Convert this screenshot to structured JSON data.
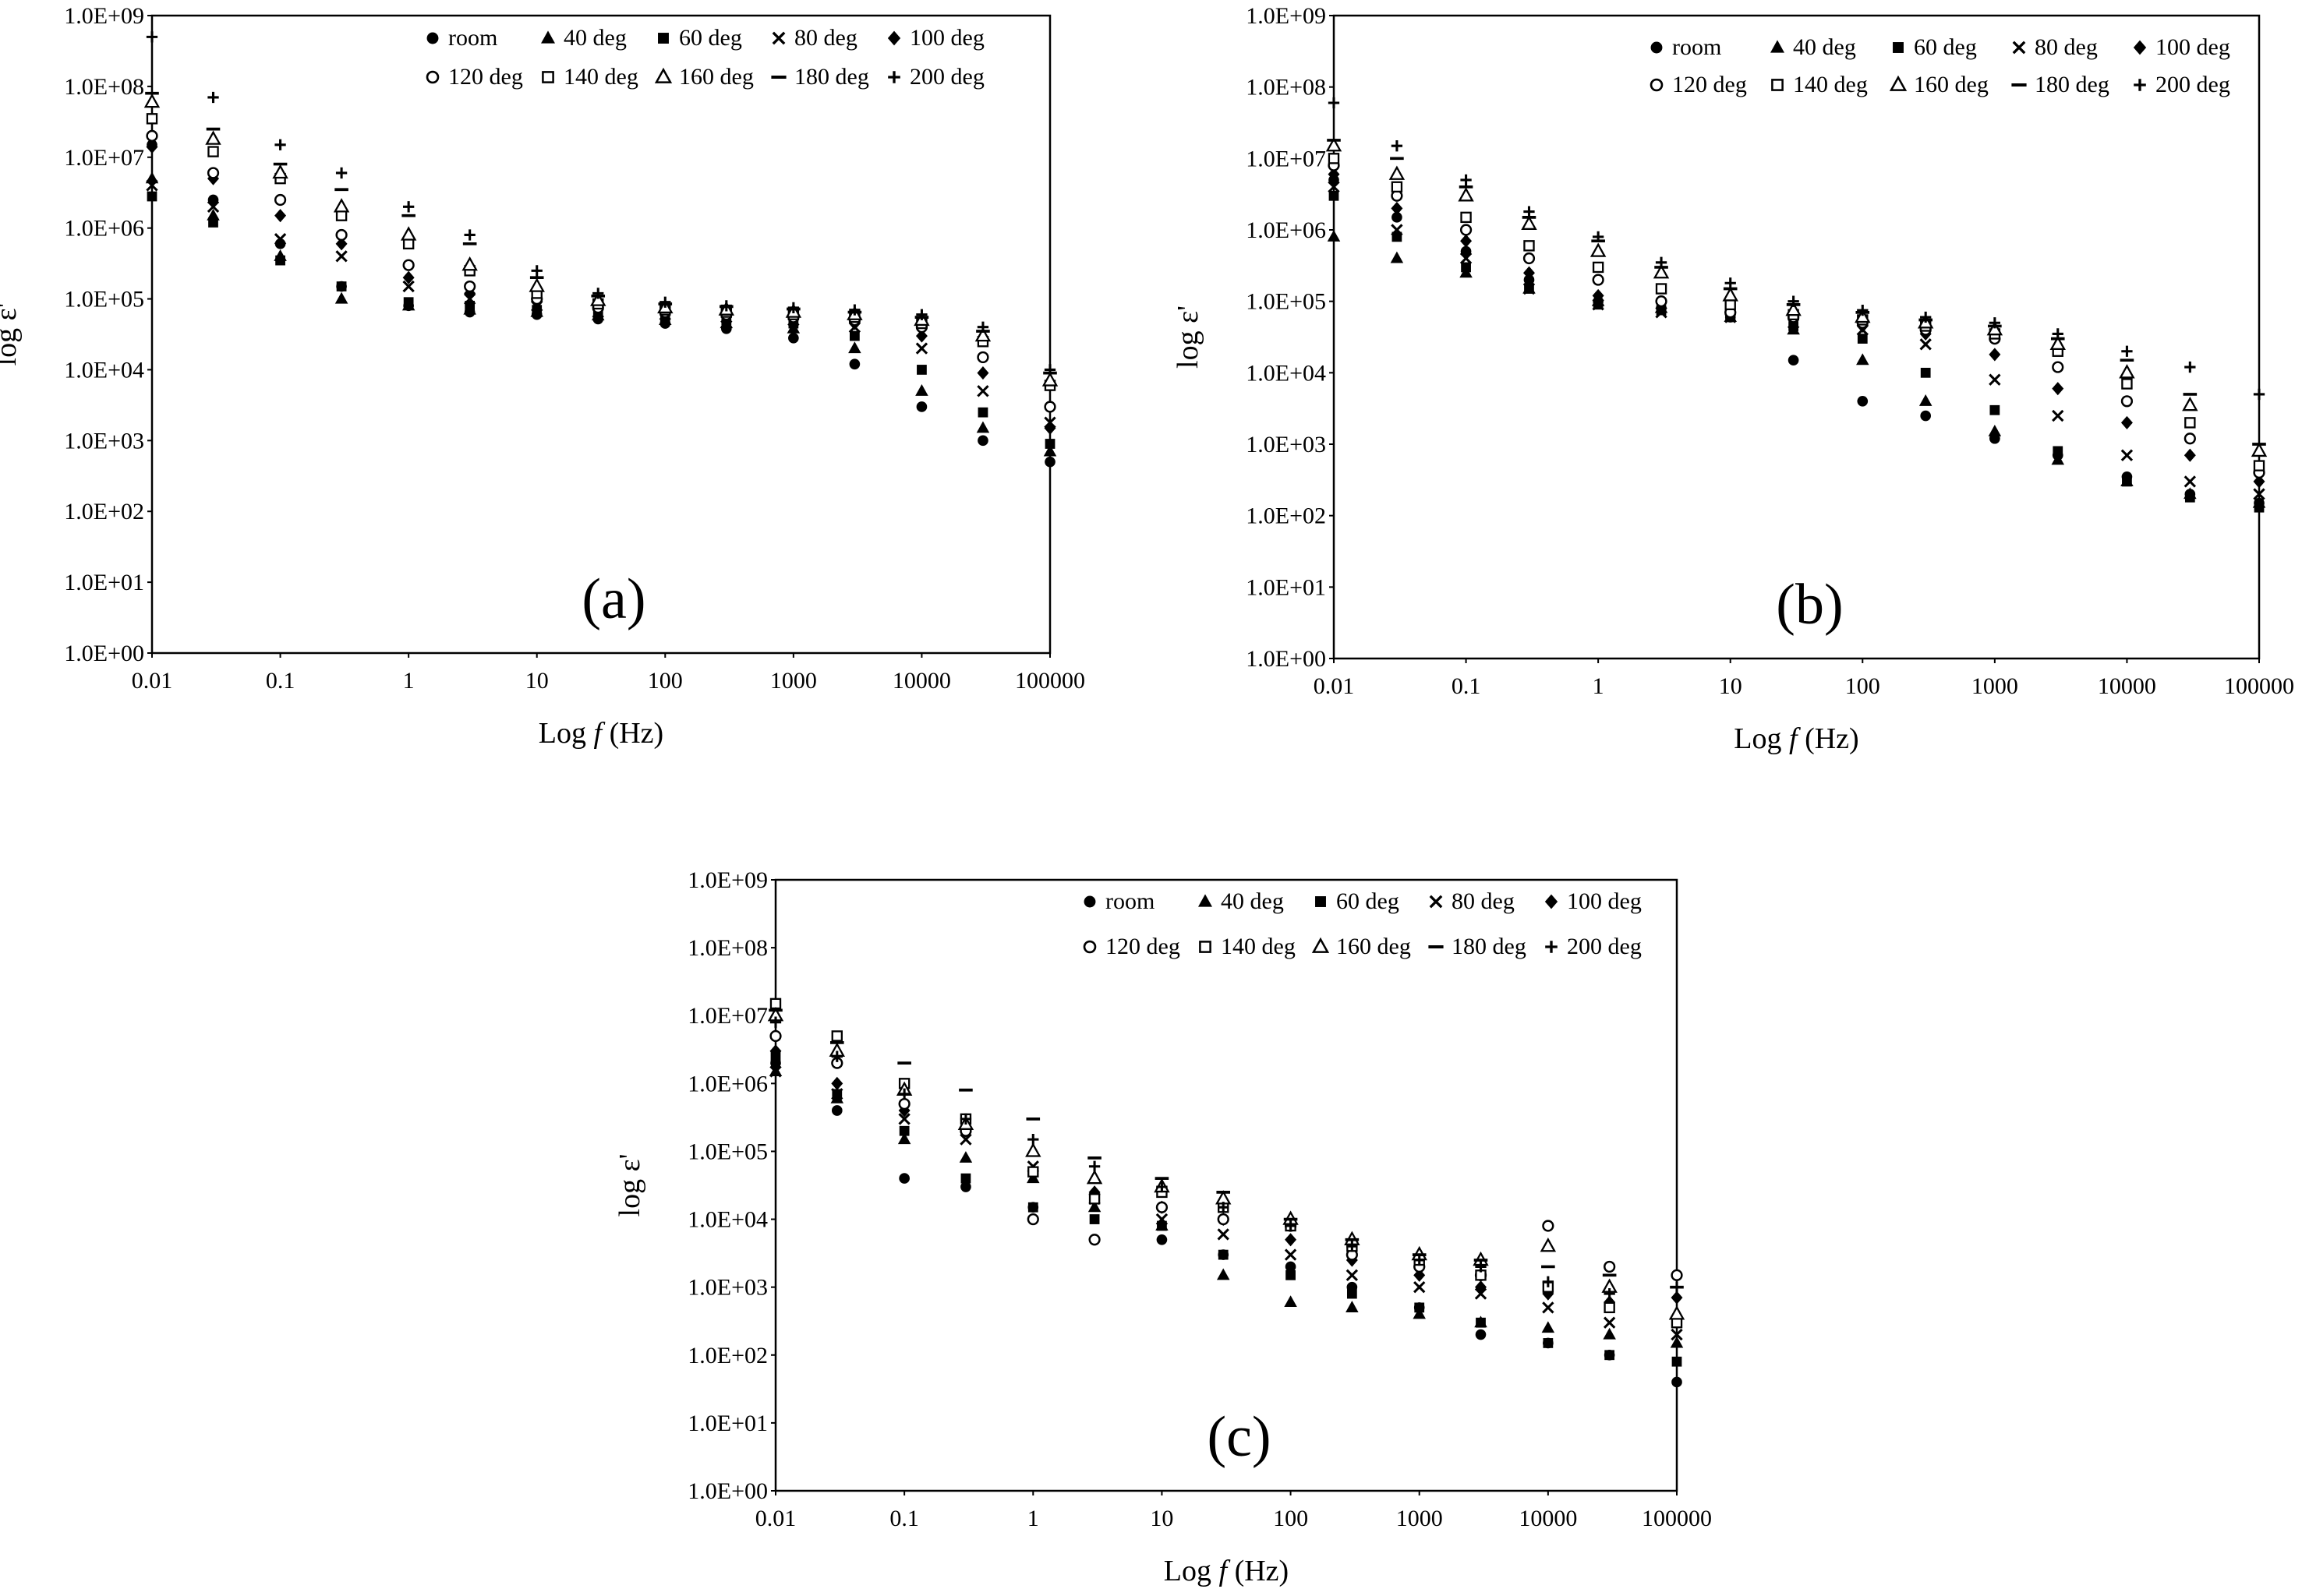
{
  "figure": {
    "panels": [
      {
        "label": "(a)",
        "xlabel_prefix": "Log ",
        "xlabel_var": "f",
        "xlabel_suffix": " (Hz)",
        "ylabel": "log ε'"
      },
      {
        "label": "(b)",
        "xlabel_prefix": "Log ",
        "xlabel_var": "f",
        "xlabel_suffix": " (Hz)",
        "ylabel": "log ε'"
      },
      {
        "label": "(c)",
        "xlabel_prefix": "Log ",
        "xlabel_var": "f",
        "xlabel_suffix": " (Hz)",
        "ylabel": "log ε'"
      }
    ]
  },
  "chart_data": [
    {
      "type": "scatter",
      "panel_label": "(a)",
      "xlabel": "Log f (Hz)",
      "ylabel": "log ε'",
      "x_scale": "log",
      "y_scale": "log",
      "xlim": [
        0.01,
        100000
      ],
      "ylim": [
        1,
        1000000000
      ],
      "x_ticks": [
        "0.01",
        "0.1",
        "1",
        "10",
        "100",
        "1000",
        "10000",
        "100000"
      ],
      "y_ticks": [
        "1.0E+00",
        "1.0E+01",
        "1.0E+02",
        "1.0E+03",
        "1.0E+04",
        "1.0E+05",
        "1.0E+06",
        "1.0E+07",
        "1.0E+08",
        "1.0E+09"
      ],
      "legend_position": "top-right",
      "grid": false,
      "x": [
        0.01,
        0.03,
        0.1,
        0.3,
        1,
        3,
        10,
        30,
        100,
        300,
        1000,
        3000,
        10000,
        30000,
        100000
      ],
      "series": [
        {
          "name": "room",
          "marker": "circle-filled",
          "values": [
            15000000,
            2500000,
            600000,
            150000,
            80000,
            65000,
            60000,
            52000,
            45000,
            38000,
            28000,
            12000,
            3000,
            1000,
            500
          ]
        },
        {
          "name": "40 deg",
          "marker": "triangle-filled",
          "values": [
            5000000,
            1500000,
            400000,
            100000,
            80000,
            70000,
            65000,
            58000,
            50000,
            45000,
            38000,
            20000,
            5000,
            1500,
            700
          ]
        },
        {
          "name": "60 deg",
          "marker": "square-filled",
          "values": [
            2800000,
            1200000,
            350000,
            150000,
            90000,
            80000,
            70000,
            60000,
            55000,
            50000,
            45000,
            30000,
            10000,
            2500,
            900
          ]
        },
        {
          "name": "80 deg",
          "marker": "x",
          "values": [
            4000000,
            2000000,
            700000,
            400000,
            150000,
            100000,
            80000,
            65000,
            60000,
            55000,
            50000,
            40000,
            20000,
            5000,
            1800
          ]
        },
        {
          "name": "100 deg",
          "marker": "diamond-filled",
          "values": [
            14000000,
            5000000,
            1500000,
            600000,
            200000,
            120000,
            90000,
            70000,
            65000,
            60000,
            55000,
            45000,
            30000,
            9000,
            1500
          ]
        },
        {
          "name": "120 deg",
          "marker": "circle-open",
          "values": [
            20000000,
            6000000,
            2500000,
            800000,
            300000,
            150000,
            100000,
            75000,
            65000,
            60000,
            55000,
            50000,
            40000,
            15000,
            3000
          ]
        },
        {
          "name": "140 deg",
          "marker": "square-open",
          "values": [
            35000000,
            12000000,
            5000000,
            1500000,
            600000,
            250000,
            120000,
            85000,
            70000,
            65000,
            60000,
            55000,
            45000,
            25000,
            6000
          ]
        },
        {
          "name": "160 deg",
          "marker": "triangle-open",
          "values": [
            60000000,
            18000000,
            6000000,
            2000000,
            800000,
            300000,
            150000,
            95000,
            75000,
            70000,
            65000,
            60000,
            50000,
            30000,
            7000
          ]
        },
        {
          "name": "180 deg",
          "marker": "dash",
          "values": [
            80000000,
            25000000,
            8000000,
            3500000,
            1500000,
            600000,
            200000,
            110000,
            85000,
            78000,
            72000,
            65000,
            55000,
            35000,
            9000
          ]
        },
        {
          "name": "200 deg",
          "marker": "plus",
          "values": [
            500000000,
            70000000,
            15000000,
            6000000,
            2000000,
            800000,
            250000,
            120000,
            90000,
            80000,
            75000,
            70000,
            60000,
            40000,
            10000
          ]
        }
      ]
    },
    {
      "type": "scatter",
      "panel_label": "(b)",
      "xlabel": "Log f (Hz)",
      "ylabel": "log ε'",
      "x_scale": "log",
      "y_scale": "log",
      "xlim": [
        0.01,
        100000
      ],
      "ylim": [
        1,
        1000000000
      ],
      "x_ticks": [
        "0.01",
        "0.1",
        "1",
        "10",
        "100",
        "1000",
        "10000",
        "100000"
      ],
      "y_ticks": [
        "1.0E+00",
        "1.0E+01",
        "1.0E+02",
        "1.0E+03",
        "1.0E+04",
        "1.0E+05",
        "1.0E+06",
        "1.0E+07",
        "1.0E+08",
        "1.0E+09"
      ],
      "legend_position": "top-right",
      "grid": false,
      "x": [
        0.01,
        0.03,
        0.1,
        0.3,
        1,
        3,
        10,
        30,
        100,
        300,
        1000,
        3000,
        10000,
        30000,
        100000
      ],
      "series": [
        {
          "name": "room",
          "marker": "circle-filled",
          "values": [
            5000000,
            1500000,
            500000,
            200000,
            100000,
            80000,
            60000,
            15000,
            4000,
            2500,
            1200,
            700,
            350,
            200,
            150
          ]
        },
        {
          "name": "40 deg",
          "marker": "triangle-filled",
          "values": [
            800000,
            400000,
            250000,
            150000,
            100000,
            80000,
            60000,
            40000,
            15000,
            4000,
            1500,
            600,
            300,
            200,
            150
          ]
        },
        {
          "name": "60 deg",
          "marker": "square-filled",
          "values": [
            3000000,
            800000,
            300000,
            150000,
            90000,
            75000,
            60000,
            45000,
            30000,
            10000,
            3000,
            800,
            300,
            180,
            130
          ]
        },
        {
          "name": "80 deg",
          "marker": "x",
          "values": [
            4000000,
            1000000,
            400000,
            150000,
            90000,
            70000,
            60000,
            50000,
            40000,
            25000,
            8000,
            2500,
            700,
            300,
            200
          ]
        },
        {
          "name": "100 deg",
          "marker": "diamond-filled",
          "values": [
            6000000,
            2000000,
            700000,
            250000,
            120000,
            80000,
            65000,
            55000,
            45000,
            35000,
            18000,
            6000,
            2000,
            700,
            300
          ]
        },
        {
          "name": "120 deg",
          "marker": "circle-open",
          "values": [
            8000000,
            3000000,
            1000000,
            400000,
            200000,
            100000,
            70000,
            60000,
            50000,
            40000,
            30000,
            12000,
            4000,
            1200,
            400
          ]
        },
        {
          "name": "140 deg",
          "marker": "square-open",
          "values": [
            10000000,
            4000000,
            1500000,
            600000,
            300000,
            150000,
            90000,
            65000,
            55000,
            45000,
            35000,
            20000,
            7000,
            2000,
            500
          ]
        },
        {
          "name": "160 deg",
          "marker": "triangle-open",
          "values": [
            15000000,
            6000000,
            3000000,
            1200000,
            500000,
            250000,
            120000,
            75000,
            60000,
            50000,
            40000,
            25000,
            10000,
            3500,
            800
          ]
        },
        {
          "name": "180 deg",
          "marker": "dash",
          "values": [
            18000000,
            10000000,
            4000000,
            1500000,
            700000,
            300000,
            150000,
            90000,
            70000,
            55000,
            45000,
            30000,
            15000,
            5000,
            1000
          ]
        },
        {
          "name": "200 deg",
          "marker": "plus",
          "values": [
            60000000,
            15000000,
            5000000,
            1800000,
            800000,
            350000,
            180000,
            100000,
            75000,
            60000,
            50000,
            35000,
            20000,
            12000,
            5000
          ]
        }
      ]
    },
    {
      "type": "scatter",
      "panel_label": "(c)",
      "xlabel": "Log f (Hz)",
      "ylabel": "log ε'",
      "x_scale": "log",
      "y_scale": "log",
      "xlim": [
        0.01,
        100000
      ],
      "ylim": [
        1,
        1000000000
      ],
      "x_ticks": [
        "0.01",
        "0.1",
        "1",
        "10",
        "100",
        "1000",
        "10000",
        "100000"
      ],
      "y_ticks": [
        "1.0E+00",
        "1.0E+01",
        "1.0E+02",
        "1.0E+03",
        "1.0E+04",
        "1.0E+05",
        "1.0E+06",
        "1.0E+07",
        "1.0E+08",
        "1.0E+09"
      ],
      "legend_position": "top-right",
      "grid": false,
      "x": [
        0.01,
        0.03,
        0.1,
        0.3,
        1,
        3,
        10,
        30,
        100,
        300,
        1000,
        3000,
        10000,
        30000,
        100000
      ],
      "series": [
        {
          "name": "room",
          "marker": "circle-filled",
          "values": [
            2000000,
            400000,
            40000,
            30000,
            15000,
            5000,
            5000,
            3000,
            2000,
            1000,
            500,
            200,
            150,
            100,
            40
          ]
        },
        {
          "name": "40 deg",
          "marker": "triangle-filled",
          "values": [
            1500000,
            600000,
            150000,
            80000,
            40000,
            15000,
            8000,
            1500,
            600,
            500,
            400,
            300,
            250,
            200,
            150
          ]
        },
        {
          "name": "60 deg",
          "marker": "square-filled",
          "values": [
            2500000,
            700000,
            200000,
            40000,
            15000,
            10000,
            8000,
            3000,
            1500,
            800,
            500,
            300,
            150,
            100,
            80
          ]
        },
        {
          "name": "80 deg",
          "marker": "x",
          "values": [
            1500000,
            700000,
            300000,
            150000,
            60000,
            20000,
            10000,
            6000,
            3000,
            1500,
            1000,
            800,
            500,
            300,
            200
          ]
        },
        {
          "name": "100 deg",
          "marker": "diamond-filled",
          "values": [
            3000000,
            1000000,
            400000,
            200000,
            50000,
            25000,
            15000,
            10000,
            5000,
            2500,
            1500,
            1000,
            800,
            600,
            700
          ]
        },
        {
          "name": "120 deg",
          "marker": "circle-open",
          "values": [
            5000000,
            2000000,
            500000,
            200000,
            10000,
            5000,
            15000,
            10000,
            8000,
            3000,
            2000,
            1500,
            8000,
            2000,
            1500
          ]
        },
        {
          "name": "140 deg",
          "marker": "square-open",
          "values": [
            15000000,
            5000000,
            1000000,
            300000,
            50000,
            20000,
            25000,
            15000,
            8000,
            4000,
            2500,
            1500,
            1000,
            500,
            300
          ]
        },
        {
          "name": "160 deg",
          "marker": "triangle-open",
          "values": [
            10000000,
            3000000,
            800000,
            250000,
            100000,
            40000,
            30000,
            20000,
            10000,
            5000,
            3000,
            2500,
            4000,
            1000,
            400
          ]
        },
        {
          "name": "180 deg",
          "marker": "dash",
          "values": [
            12000000,
            4000000,
            2000000,
            800000,
            300000,
            80000,
            40000,
            25000,
            10000,
            5000,
            3000,
            2500,
            2000,
            1500,
            1000
          ]
        },
        {
          "name": "200 deg",
          "marker": "plus",
          "values": [
            8000000,
            2500000,
            700000,
            300000,
            150000,
            60000,
            30000,
            15000,
            8000,
            4000,
            2500,
            2000,
            1200,
            800,
            1000
          ]
        }
      ]
    }
  ]
}
